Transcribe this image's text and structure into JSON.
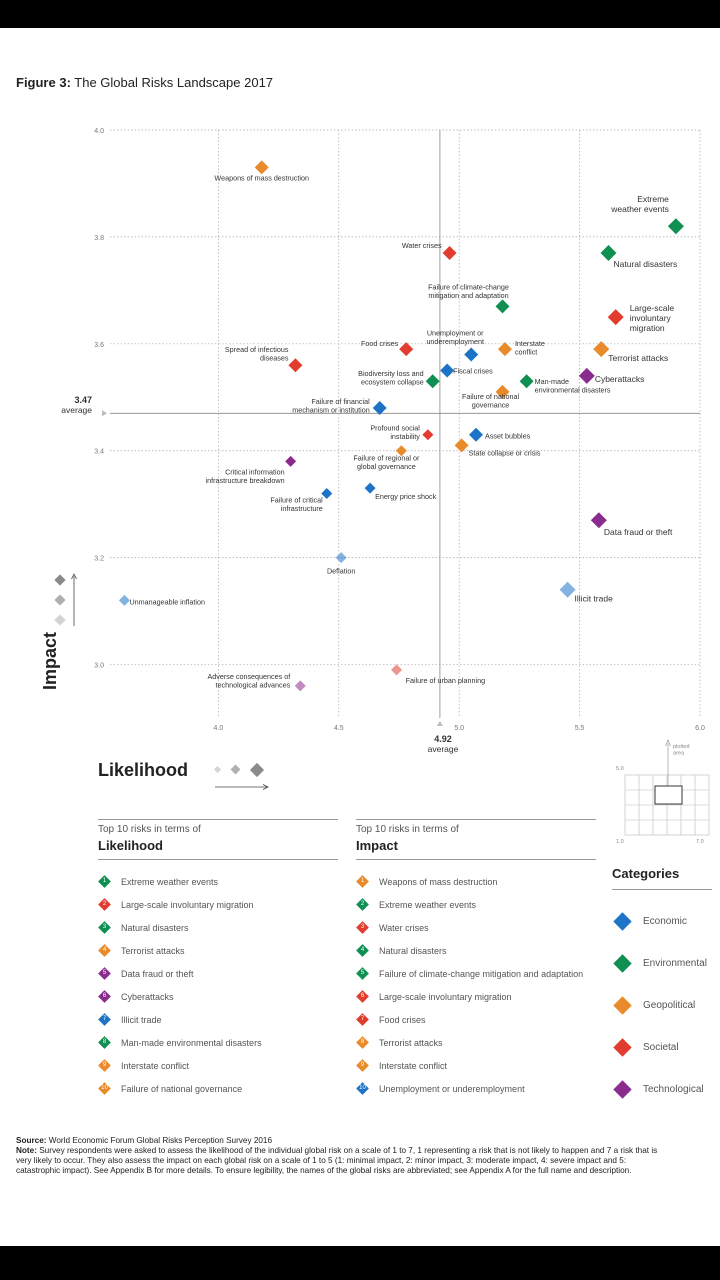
{
  "figure": {
    "prefix": "Figure 3:",
    "title": "The Global Risks Landscape 2017"
  },
  "colors": {
    "Economic": "#1d74c7",
    "Environmental": "#0f8f52",
    "Geopolitical": "#e98a2b",
    "Societal": "#e23c2f",
    "Technological": "#8a2b8e"
  },
  "chart_data": {
    "type": "scatter",
    "title": "The Global Risks Landscape 2017",
    "xlabel": "Likelihood",
    "ylabel": "Impact",
    "xlim": [
      3.55,
      6.0
    ],
    "ylim": [
      2.9,
      4.0
    ],
    "xticks": [
      "4.0",
      "4.5",
      "5.0",
      "5.5",
      "6.0"
    ],
    "yticks": [
      "3.0",
      "3.2",
      "3.4",
      "3.6",
      "3.8",
      "4.0"
    ],
    "average_x": "4.92",
    "average_y": "3.47",
    "average_label": "average",
    "grid": true,
    "series": [
      {
        "name": "Economic",
        "points": [
          {
            "label": "Unemployment or underemployment",
            "text": "Unemployment or\nunderemployment",
            "x": 5.05,
            "y": 3.58
          },
          {
            "label": "Fiscal crises",
            "text": "Fiscal crises",
            "x": 4.95,
            "y": 3.55
          },
          {
            "label": "Failure of financial mechanism or institution",
            "text": "Failure of financial\nmechanism or institution",
            "x": 4.67,
            "y": 3.48
          },
          {
            "label": "Asset bubbles",
            "text": "Asset bubbles",
            "x": 5.07,
            "y": 3.43
          },
          {
            "label": "Energy price shock",
            "text": "Energy price shock",
            "x": 4.63,
            "y": 3.33
          },
          {
            "label": "Failure of critical infrastructure",
            "text": "Failure of critical\ninfrastructure",
            "x": 4.45,
            "y": 3.32
          },
          {
            "label": "Deflation",
            "text": "Deflation",
            "x": 4.51,
            "y": 3.2
          },
          {
            "label": "Unmanageable inflation",
            "text": "Unmanageable inflation",
            "x": 3.61,
            "y": 3.12
          },
          {
            "label": "Illicit trade",
            "text": "Illicit trade",
            "x": 5.45,
            "y": 3.14
          }
        ]
      },
      {
        "name": "Environmental",
        "points": [
          {
            "label": "Extreme weather events",
            "text": "Extreme\nweather events",
            "x": 5.9,
            "y": 3.82
          },
          {
            "label": "Natural disasters",
            "text": "Natural disasters",
            "x": 5.62,
            "y": 3.77
          },
          {
            "label": "Failure of climate-change mitigation and adaptation",
            "text": "Failure of climate-change\nmitigation and adaptation",
            "x": 5.18,
            "y": 3.67
          },
          {
            "label": "Man-made environmental disasters",
            "text": "Man-made\nenvironmental disasters",
            "x": 5.28,
            "y": 3.53
          },
          {
            "label": "Biodiversity loss and ecosystem collapse",
            "text": "Biodiversity loss and\necosystem collapse",
            "x": 4.89,
            "y": 3.53
          }
        ]
      },
      {
        "name": "Geopolitical",
        "points": [
          {
            "label": "Weapons of mass destruction",
            "text": "Weapons of mass destruction",
            "x": 4.18,
            "y": 3.93
          },
          {
            "label": "Interstate conflict",
            "text": "Interstate\nconflict",
            "x": 5.19,
            "y": 3.59
          },
          {
            "label": "Terrorist attacks",
            "text": "Terrorist attacks",
            "x": 5.59,
            "y": 3.59
          },
          {
            "label": "Failure of national governance",
            "text": "Failure of national\ngovernance",
            "x": 5.18,
            "y": 3.51
          },
          {
            "label": "Failure of regional or global governance",
            "text": "Failure of regional or\nglobal governance",
            "x": 4.76,
            "y": 3.4
          },
          {
            "label": "State collapse or crisis",
            "text": "State collapse or crisis",
            "x": 5.01,
            "y": 3.41
          }
        ]
      },
      {
        "name": "Societal",
        "points": [
          {
            "label": "Water crises",
            "text": "Water crises",
            "x": 4.96,
            "y": 3.77
          },
          {
            "label": "Large-scale involuntary migration",
            "text": "Large-scale\ninvoluntary\nmigration",
            "x": 5.65,
            "y": 3.65
          },
          {
            "label": "Food crises",
            "text": "Food crises",
            "x": 4.78,
            "y": 3.59
          },
          {
            "label": "Spread of infectious diseases",
            "text": "Spread of infectious\ndiseases",
            "x": 4.32,
            "y": 3.56
          },
          {
            "label": "Profound social instability",
            "text": "Profound social\ninstability",
            "x": 4.87,
            "y": 3.43
          },
          {
            "label": "Failure of urban planning",
            "text": "Failure of urban planning",
            "x": 4.74,
            "y": 2.99
          }
        ]
      },
      {
        "name": "Technological",
        "points": [
          {
            "label": "Cyberattacks",
            "text": "Cyberattacks",
            "x": 5.53,
            "y": 3.54
          },
          {
            "label": "Critical information infrastructure breakdown",
            "text": "Critical information\ninfrastructure breakdown",
            "x": 4.3,
            "y": 3.38
          },
          {
            "label": "Data fraud or theft",
            "text": "Data fraud or theft",
            "x": 5.58,
            "y": 3.27
          },
          {
            "label": "Adverse consequences of technological advances",
            "text": "Adverse consequences of\ntechnological advances",
            "x": 4.34,
            "y": 2.96
          }
        ]
      }
    ]
  },
  "axis_titles": {
    "impact": "Impact",
    "likelihood": "Likelihood"
  },
  "inset": {
    "y_tick": "5.0",
    "x_left": "1.0",
    "x_right": "7.0",
    "caption": "plotted\narea"
  },
  "top_likelihood": {
    "header": "Top 10 risks in terms of",
    "title": "Likelihood",
    "items": [
      {
        "n": "1",
        "label": "Extreme weather events",
        "cat": "Environmental"
      },
      {
        "n": "2",
        "label": "Large-scale involuntary migration",
        "cat": "Societal"
      },
      {
        "n": "3",
        "label": "Natural disasters",
        "cat": "Environmental"
      },
      {
        "n": "4",
        "label": "Terrorist attacks",
        "cat": "Geopolitical"
      },
      {
        "n": "5",
        "label": "Data fraud or theft",
        "cat": "Technological"
      },
      {
        "n": "6",
        "label": "Cyberattacks",
        "cat": "Technological"
      },
      {
        "n": "7",
        "label": "Illicit trade",
        "cat": "Economic"
      },
      {
        "n": "8",
        "label": "Man-made environmental disasters",
        "cat": "Environmental"
      },
      {
        "n": "9",
        "label": "Interstate conflict",
        "cat": "Geopolitical"
      },
      {
        "n": "10",
        "label": "Failure of national governance",
        "cat": "Geopolitical"
      }
    ]
  },
  "top_impact": {
    "header": "Top 10 risks in terms of",
    "title": "Impact",
    "items": [
      {
        "n": "1",
        "label": "Weapons of mass destruction",
        "cat": "Geopolitical"
      },
      {
        "n": "2",
        "label": "Extreme weather events",
        "cat": "Environmental"
      },
      {
        "n": "3",
        "label": "Water crises",
        "cat": "Societal"
      },
      {
        "n": "4",
        "label": "Natural disasters",
        "cat": "Environmental"
      },
      {
        "n": "5",
        "label": "Failure of climate-change mitigation and adaptation",
        "cat": "Environmental"
      },
      {
        "n": "6",
        "label": "Large-scale involuntary migration",
        "cat": "Societal"
      },
      {
        "n": "7",
        "label": "Food crises",
        "cat": "Societal"
      },
      {
        "n": "8",
        "label": "Terrorist attacks",
        "cat": "Geopolitical"
      },
      {
        "n": "9",
        "label": "Interstate conflict",
        "cat": "Geopolitical"
      },
      {
        "n": "10",
        "label": "Unemployment or underemployment",
        "cat": "Economic"
      }
    ]
  },
  "categories": {
    "title": "Categories",
    "items": [
      "Economic",
      "Environmental",
      "Geopolitical",
      "Societal",
      "Technological"
    ]
  },
  "footer": {
    "source_label": "Source:",
    "source_text": " World Economic Forum Global Risks Perception Survey 2016",
    "note_label": "Note:",
    "note_line1": " Survey respondents were asked to assess the likelihood of the individual global risk on a scale of 1 to 7, 1 representing a risk that is not likely to happen and 7 a risk that is",
    "note_line2": "very likely to occur. They also assess the impact on each global risk on a scale of 1 to 5 (1: minimal impact, 2: minor impact, 3: moderate impact, 4: severe impact and 5:",
    "note_line3": "catastrophic impact). See Appendix B for more details. To ensure legibility, the names of the global risks are abbreviated; see Appendix A for the full name and description."
  }
}
